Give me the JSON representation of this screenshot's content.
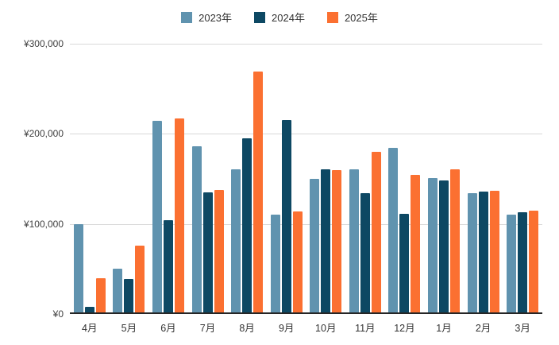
{
  "chart_data": {
    "type": "bar",
    "title": "",
    "categories": [
      "4月",
      "5月",
      "6月",
      "7月",
      "8月",
      "9月",
      "10月",
      "11月",
      "12月",
      "1月",
      "2月",
      "3月"
    ],
    "series": [
      {
        "name": "2023年",
        "color": "#6093af",
        "values": [
          100000,
          50000,
          214000,
          186000,
          161000,
          110000,
          150000,
          161000,
          184000,
          151000,
          134000,
          110000
        ]
      },
      {
        "name": "2024年",
        "color": "#0d4863",
        "values": [
          8000,
          39000,
          104000,
          135000,
          195000,
          215000,
          161000,
          134000,
          111000,
          148000,
          136000,
          113000
        ]
      },
      {
        "name": "2025年",
        "color": "#fb7031",
        "values": [
          40000,
          76000,
          217000,
          138000,
          269000,
          114000,
          160000,
          180000,
          154000,
          161000,
          137000,
          115000
        ]
      }
    ],
    "y_axis": {
      "max": 300000,
      "ticks": [
        {
          "label": "¥300,000",
          "value": 300000
        },
        {
          "label": "¥200,000",
          "value": 200000
        },
        {
          "label": "¥100,000",
          "value": 100000
        },
        {
          "label": "¥0",
          "value": 0
        }
      ]
    },
    "xlabel": "",
    "ylabel": "",
    "legend_position": "top",
    "grid": "horizontal"
  },
  "colors": {
    "background": "#ffffff",
    "gridline": "#d9d9d9",
    "axis_line": "#262626",
    "label_text": "#404040"
  }
}
